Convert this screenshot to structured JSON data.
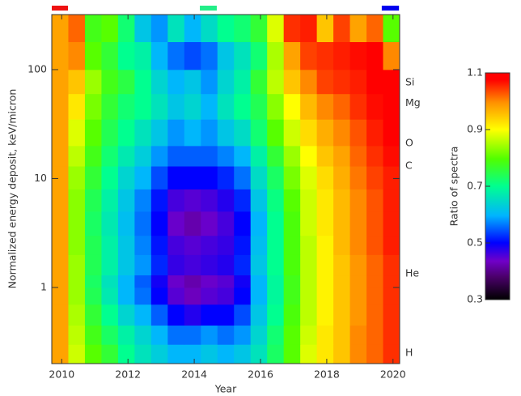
{
  "chart_data": {
    "type": "heatmap",
    "x_label": "Year",
    "y_label": "Normalized energy deposit, keV/micron",
    "colorbar_label": "Ratio of spectra",
    "log_y": true,
    "xlim": [
      2009.7,
      2020.2
    ],
    "xticks": [
      2010,
      2012,
      2014,
      2016,
      2018,
      2020
    ],
    "ylim": [
      0.2,
      320
    ],
    "yticks": [
      1,
      10,
      100
    ],
    "clim": [
      0.3,
      1.1
    ],
    "cticks": [
      0.3,
      0.5,
      0.7,
      0.9,
      1.1
    ],
    "x_edges": [
      2009.7,
      2010.2,
      2010.7,
      2011.2,
      2011.7,
      2012.2,
      2012.7,
      2013.2,
      2013.7,
      2014.2,
      2014.7,
      2015.2,
      2015.7,
      2016.2,
      2016.7,
      2017.2,
      2017.7,
      2018.2,
      2018.7,
      2019.2,
      2019.7,
      2020.2
    ],
    "y_edges": [
      0.2,
      0.3,
      0.45,
      0.7,
      1,
      1.3,
      2,
      3,
      5,
      8,
      13,
      20,
      35,
      60,
      100,
      180,
      320
    ],
    "z": [
      [
        0.98,
        0.87,
        0.8,
        0.76,
        0.7,
        0.66,
        0.63,
        0.6,
        0.6,
        0.62,
        0.6,
        0.62,
        0.66,
        0.73,
        0.8,
        0.88,
        0.92,
        0.95,
        1.0,
        1.02,
        1.05
      ],
      [
        0.98,
        0.86,
        0.78,
        0.73,
        0.68,
        0.64,
        0.6,
        0.56,
        0.56,
        0.58,
        0.56,
        0.58,
        0.64,
        0.72,
        0.8,
        0.87,
        0.92,
        0.95,
        1.0,
        1.02,
        1.05
      ],
      [
        0.98,
        0.85,
        0.76,
        0.7,
        0.64,
        0.6,
        0.55,
        0.5,
        0.48,
        0.5,
        0.5,
        0.54,
        0.62,
        0.7,
        0.79,
        0.86,
        0.91,
        0.95,
        0.99,
        1.02,
        1.05
      ],
      [
        0.98,
        0.84,
        0.74,
        0.67,
        0.6,
        0.56,
        0.5,
        0.45,
        0.43,
        0.45,
        0.46,
        0.5,
        0.6,
        0.69,
        0.78,
        0.86,
        0.91,
        0.95,
        0.99,
        1.02,
        1.05
      ],
      [
        0.98,
        0.84,
        0.73,
        0.66,
        0.6,
        0.55,
        0.49,
        0.44,
        0.42,
        0.44,
        0.45,
        0.49,
        0.6,
        0.69,
        0.78,
        0.86,
        0.91,
        0.95,
        0.99,
        1.02,
        1.05
      ],
      [
        0.98,
        0.84,
        0.74,
        0.68,
        0.62,
        0.58,
        0.52,
        0.47,
        0.46,
        0.47,
        0.48,
        0.52,
        0.62,
        0.7,
        0.79,
        0.86,
        0.91,
        0.95,
        0.99,
        1.02,
        1.05
      ],
      [
        0.98,
        0.83,
        0.74,
        0.68,
        0.62,
        0.57,
        0.51,
        0.46,
        0.45,
        0.46,
        0.47,
        0.51,
        0.61,
        0.7,
        0.79,
        0.86,
        0.91,
        0.96,
        1.0,
        1.03,
        1.06
      ],
      [
        0.98,
        0.83,
        0.73,
        0.67,
        0.61,
        0.56,
        0.5,
        0.44,
        0.42,
        0.44,
        0.46,
        0.5,
        0.6,
        0.7,
        0.79,
        0.87,
        0.92,
        0.96,
        1.0,
        1.03,
        1.06
      ],
      [
        0.98,
        0.83,
        0.74,
        0.68,
        0.62,
        0.57,
        0.51,
        0.46,
        0.45,
        0.46,
        0.48,
        0.52,
        0.62,
        0.71,
        0.8,
        0.87,
        0.92,
        0.96,
        1.0,
        1.03,
        1.06
      ],
      [
        0.98,
        0.84,
        0.76,
        0.7,
        0.64,
        0.6,
        0.54,
        0.5,
        0.5,
        0.5,
        0.52,
        0.56,
        0.65,
        0.73,
        0.82,
        0.88,
        0.93,
        0.97,
        1.01,
        1.04,
        1.06
      ],
      [
        0.98,
        0.86,
        0.78,
        0.72,
        0.67,
        0.63,
        0.58,
        0.55,
        0.55,
        0.55,
        0.57,
        0.6,
        0.68,
        0.76,
        0.84,
        0.9,
        0.95,
        0.98,
        1.02,
        1.05,
        1.07
      ],
      [
        0.98,
        0.88,
        0.8,
        0.74,
        0.7,
        0.66,
        0.62,
        0.58,
        0.6,
        0.58,
        0.62,
        0.65,
        0.72,
        0.8,
        0.87,
        0.93,
        0.97,
        1.0,
        1.03,
        1.06,
        1.08
      ],
      [
        0.98,
        0.92,
        0.82,
        0.76,
        0.72,
        0.7,
        0.66,
        0.62,
        0.64,
        0.6,
        0.66,
        0.7,
        0.74,
        0.83,
        0.9,
        0.96,
        1.0,
        1.02,
        1.05,
        1.07,
        1.08
      ],
      [
        0.98,
        0.95,
        0.84,
        0.78,
        0.75,
        0.7,
        0.64,
        0.6,
        0.62,
        0.58,
        0.64,
        0.68,
        0.76,
        0.86,
        0.95,
        1.0,
        1.04,
        1.05,
        1.06,
        1.08,
        1.08
      ],
      [
        0.98,
        1.0,
        0.8,
        0.76,
        0.7,
        0.68,
        0.6,
        0.56,
        0.54,
        0.56,
        0.62,
        0.66,
        0.72,
        0.85,
        0.98,
        1.04,
        1.05,
        1.06,
        1.07,
        1.08,
        1.0
      ],
      [
        0.98,
        1.02,
        0.78,
        0.8,
        0.72,
        0.62,
        0.58,
        0.66,
        0.6,
        0.65,
        0.7,
        0.72,
        0.76,
        0.88,
        1.05,
        1.06,
        0.95,
        1.04,
        0.98,
        1.02,
        0.8
      ]
    ],
    "annotations": [
      {
        "text": "Si",
        "y": 76
      },
      {
        "text": "Mg",
        "y": 49
      },
      {
        "text": "O",
        "y": 21
      },
      {
        "text": "C",
        "y": 13
      },
      {
        "text": "He",
        "y": 1.34
      },
      {
        "text": "H",
        "y": 0.25
      }
    ],
    "markers": [
      {
        "color": "#ee1111",
        "x": [
          2009.7,
          2010.19
        ]
      },
      {
        "color": "#22ee88",
        "x": [
          2014.17,
          2014.68
        ]
      },
      {
        "color": "#0000ee",
        "x": [
          2019.66,
          2020.18
        ]
      }
    ]
  }
}
